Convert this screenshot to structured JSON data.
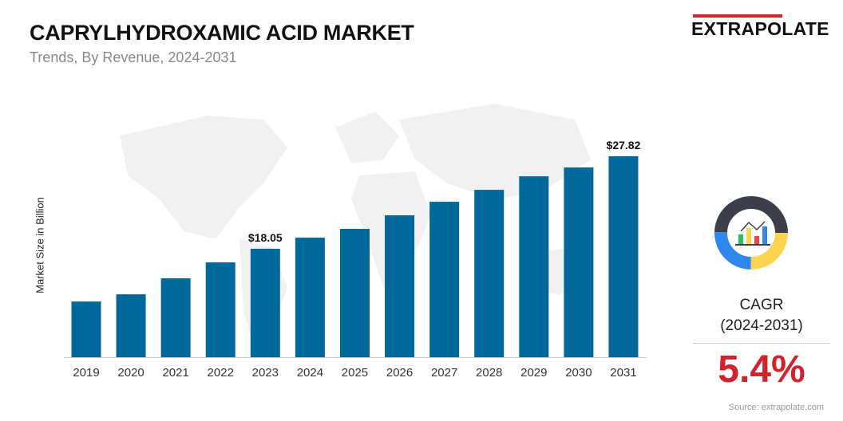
{
  "header": {
    "title": "CAPRYLHYDROXAMIC ACID MARKET",
    "subtitle": "Trends, By Revenue, 2024-2031"
  },
  "logo": {
    "text": "EXTRAPOLATE",
    "accent_color": "#d2232a"
  },
  "cagr": {
    "label": "CAGR",
    "period": "(2024-2031)",
    "value": "5.4%",
    "icon": "donut-chart-analytics-icon",
    "value_color": "#d2232a"
  },
  "source": "Source: extrapolate.com",
  "chart_data": {
    "type": "bar",
    "title": "",
    "xlabel": "",
    "ylabel": "Market Size in Billion",
    "categories": [
      "2019",
      "2020",
      "2021",
      "2022",
      "2023",
      "2024",
      "2025",
      "2026",
      "2027",
      "2028",
      "2029",
      "2030",
      "2031"
    ],
    "values": [
      12.48,
      13.24,
      14.93,
      16.61,
      18.05,
      19.22,
      20.15,
      21.58,
      23.01,
      24.27,
      25.7,
      26.63,
      27.82
    ],
    "data_labels": {
      "2023": "$18.05",
      "2031": "$27.82"
    },
    "ylim": [
      6.6,
      30
    ],
    "grid": false,
    "bar_color": "#01689b",
    "legend": "none"
  }
}
